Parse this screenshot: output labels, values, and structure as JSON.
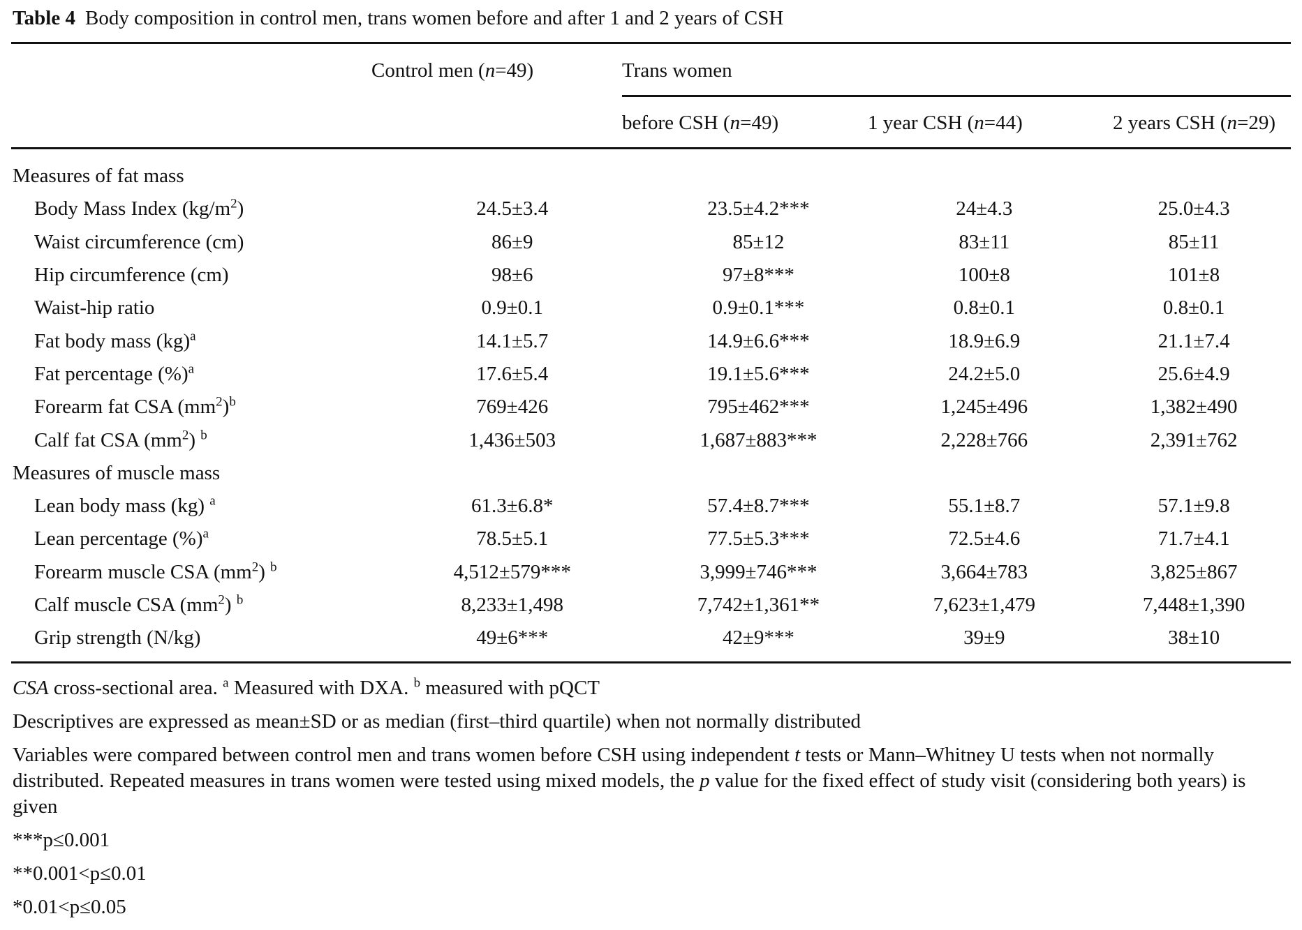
{
  "title": {
    "label": "Table 4",
    "text": "Body composition in control men, trans women before and after 1 and 2 years of CSH"
  },
  "header": {
    "control": {
      "pre": "Control men (",
      "n": "n",
      "post": "=49)"
    },
    "trans": "Trans women",
    "before": {
      "pre": "before CSH (",
      "n": "n",
      "post": "=49)"
    },
    "year1": {
      "pre": "1 year CSH (",
      "n": "n",
      "post": "=44)"
    },
    "year2": {
      "pre": "2 years CSH (",
      "n": "n",
      "post": "=29)"
    }
  },
  "sections": [
    {
      "title": "Measures of fat mass",
      "rows": [
        {
          "label": "Body Mass Index (kg/m",
          "sup1": "2",
          "tail": ")",
          "sup2": "",
          "values": [
            "24.5±3.4",
            "23.5±4.2***",
            "24±4.3",
            "25.0±4.3"
          ]
        },
        {
          "label": "Waist circumference (cm)",
          "sup1": "",
          "tail": "",
          "sup2": "",
          "values": [
            "86±9",
            "85±12",
            "83±11",
            "85±11"
          ]
        },
        {
          "label": "Hip circumference (cm)",
          "sup1": "",
          "tail": "",
          "sup2": "",
          "values": [
            "98±6",
            "97±8***",
            "100±8",
            "101±8"
          ]
        },
        {
          "label": "Waist-hip ratio",
          "sup1": "",
          "tail": "",
          "sup2": "",
          "values": [
            "0.9±0.1",
            "0.9±0.1***",
            "0.8±0.1",
            "0.8±0.1"
          ]
        },
        {
          "label": "Fat body mass (kg)",
          "sup1": "",
          "tail": "",
          "sup2": "a",
          "values": [
            "14.1±5.7",
            "14.9±6.6***",
            "18.9±6.9",
            "21.1±7.4"
          ]
        },
        {
          "label": "Fat percentage (%)",
          "sup1": "",
          "tail": "",
          "sup2": "a",
          "values": [
            "17.6±5.4",
            "19.1±5.6***",
            "24.2±5.0",
            "25.6±4.9"
          ]
        },
        {
          "label": "Forearm fat CSA (mm",
          "sup1": "2",
          "tail": ")",
          "sup2": "b",
          "values": [
            "769±426",
            "795±462***",
            "1,245±496",
            "1,382±490"
          ]
        },
        {
          "label": "Calf fat CSA (mm",
          "sup1": "2",
          "tail": ") ",
          "sup2": "b",
          "values": [
            "1,436±503",
            "1,687±883***",
            "2,228±766",
            "2,391±762"
          ]
        }
      ]
    },
    {
      "title": "Measures of muscle mass",
      "rows": [
        {
          "label": "Lean body mass (kg) ",
          "sup1": "",
          "tail": "",
          "sup2": "a",
          "values": [
            "61.3±6.8*",
            "57.4±8.7***",
            "55.1±8.7",
            "57.1±9.8"
          ]
        },
        {
          "label": "Lean percentage (%)",
          "sup1": "",
          "tail": "",
          "sup2": "a",
          "values": [
            "78.5±5.1",
            "77.5±5.3***",
            "72.5±4.6",
            "71.7±4.1"
          ]
        },
        {
          "label": "Forearm muscle CSA (mm",
          "sup1": "2",
          "tail": ") ",
          "sup2": "b",
          "values": [
            "4,512±579***",
            "3,999±746***",
            "3,664±783",
            "3,825±867"
          ]
        },
        {
          "label": "Calf muscle CSA (mm",
          "sup1": "2",
          "tail": ") ",
          "sup2": "b",
          "values": [
            "8,233±1,498",
            "7,742±1,361**",
            "7,623±1,479",
            "7,448±1,390"
          ]
        },
        {
          "label": "Grip strength (N/kg)",
          "sup1": "",
          "tail": "",
          "sup2": "",
          "values": [
            "49±6***",
            "42±9***",
            "39±9",
            "38±10"
          ]
        }
      ]
    }
  ],
  "footnotes": {
    "abbr": {
      "term": "CSA",
      "text": " cross-sectional area. ",
      "sup_a": "a",
      "a_text": " Measured with DXA. ",
      "sup_b": "b",
      "b_text": " measured with pQCT"
    },
    "descriptives": "Descriptives are expressed as mean±SD or as median (first–third quartile) when not normally distributed",
    "methods": {
      "p1": "Variables were compared between control men and trans women before CSH using independent ",
      "t": "t",
      "p2": " tests or Mann–Whitney U tests when not normally distributed. Repeated measures in trans women were tested using mixed models, the ",
      "p": "p",
      "p3": " value for the fixed effect of study visit (considering both years) is given"
    },
    "sig3": "***p≤0.001",
    "sig2": "**0.001<p≤0.01",
    "sig1": "*0.01<p≤0.05"
  }
}
